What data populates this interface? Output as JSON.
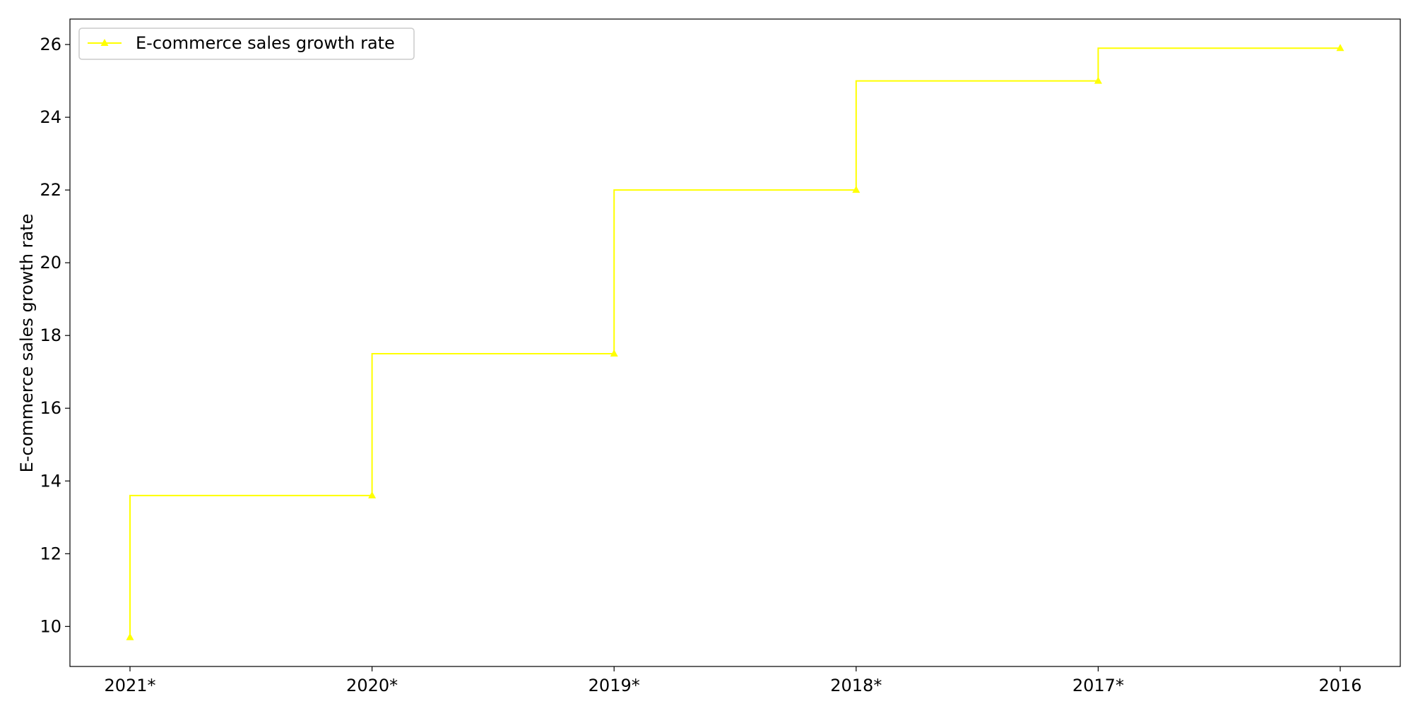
{
  "chart_data": {
    "type": "line",
    "step": "pre",
    "categories": [
      "2021*",
      "2020*",
      "2019*",
      "2018*",
      "2017*",
      "2016"
    ],
    "series": [
      {
        "name": "E-commerce sales growth rate",
        "values": [
          9.7,
          13.6,
          17.5,
          22.0,
          25.0,
          25.9
        ],
        "color": "#ffff00",
        "marker": "triangle-up"
      }
    ],
    "title": "",
    "xlabel": "",
    "ylabel": "E-commerce sales growth rate",
    "ylim": [
      8.9,
      26.7
    ],
    "yticks": [
      10,
      12,
      14,
      16,
      18,
      20,
      22,
      24,
      26
    ],
    "grid": false,
    "legend_position": "top-left"
  }
}
